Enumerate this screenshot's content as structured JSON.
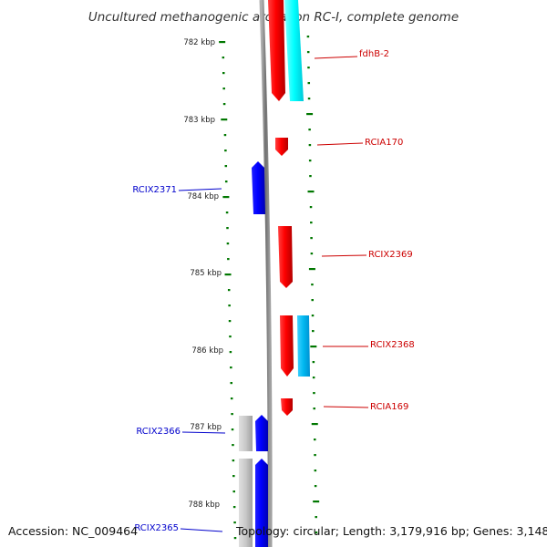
{
  "title": "Uncultured methanogenic archaeon RC-I, complete genome",
  "footer": {
    "accession": "Accession: NC_009464",
    "topology": "Topology: circular; Length: 3,179,916 bp; Genes: 3,148"
  },
  "scale": {
    "unit": "kbp",
    "labels": [
      "782 kbp",
      "783 kbp",
      "784 kbp",
      "785 kbp",
      "786 kbp",
      "787 kbp",
      "788 kbp"
    ]
  },
  "colors": {
    "forward_gene": "#ff0000",
    "forward_rna": "#00ffff",
    "reverse_gene": "#0000ff",
    "reverse_rna": "#c0c0c0",
    "forward_label": "#cc0000",
    "reverse_label": "#0000cc",
    "tick": "#007700",
    "backbone": "#808080"
  },
  "genes": {
    "forward": [
      {
        "label": "fdhB-2"
      },
      {
        "label": "RCIA170"
      },
      {
        "label": "RCIX2369"
      },
      {
        "label": "RCIX2368"
      },
      {
        "label": "RCIA169"
      }
    ],
    "reverse": [
      {
        "label": "RCIX2371"
      },
      {
        "label": "RCIX2366"
      },
      {
        "label": "RCIX2365"
      }
    ]
  }
}
